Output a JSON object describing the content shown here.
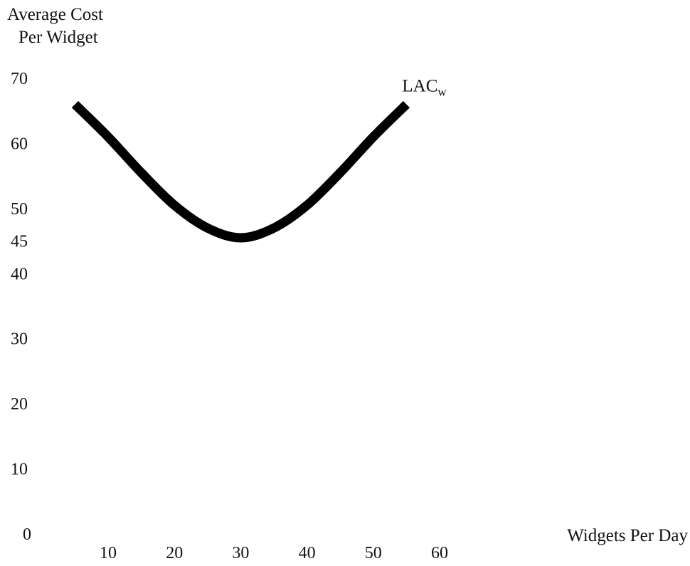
{
  "chart_data": {
    "type": "line",
    "title": "",
    "ylabel_lines": [
      "Average Cost",
      "Per Widget"
    ],
    "xlabel": "Widgets Per Day",
    "y_ticks": [
      0,
      10,
      20,
      30,
      40,
      45,
      50,
      60,
      70
    ],
    "x_ticks": [
      10,
      20,
      30,
      40,
      50,
      60
    ],
    "xlim": [
      0,
      66
    ],
    "ylim": [
      0,
      70
    ],
    "grid": false,
    "axes_lines": false,
    "series": [
      {
        "label_main": "LAC",
        "label_sub": "w",
        "color": "#000000",
        "points": [
          [
            5,
            66
          ],
          [
            10,
            61
          ],
          [
            15,
            55.5
          ],
          [
            20,
            50.5
          ],
          [
            25,
            47
          ],
          [
            30,
            45.5
          ],
          [
            35,
            47
          ],
          [
            40,
            50.5
          ],
          [
            45,
            55.5
          ],
          [
            50,
            61
          ],
          [
            55,
            66
          ]
        ]
      }
    ]
  }
}
